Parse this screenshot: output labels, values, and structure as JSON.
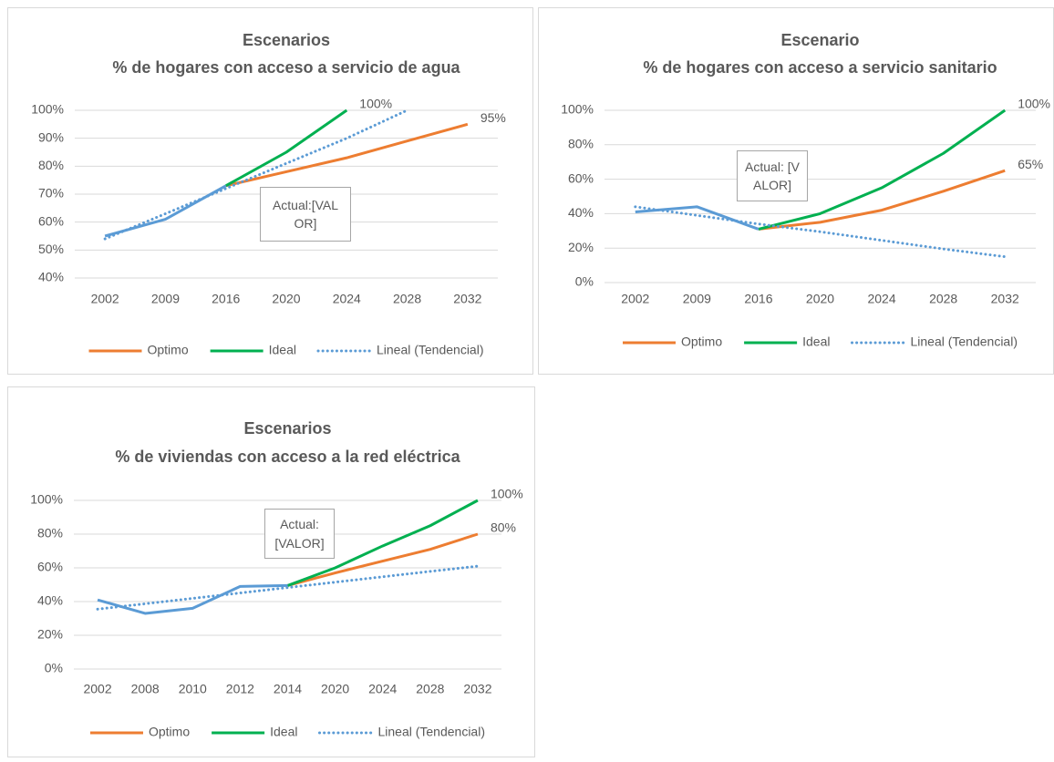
{
  "chart_data": [
    {
      "type": "line",
      "title": "Escenarios",
      "subtitle": "% de hogares con acceso a servicio de agua",
      "categories": [
        "2002",
        "2009",
        "2016",
        "2020",
        "2024",
        "2028",
        "2032"
      ],
      "series": [
        {
          "name": "Optimo",
          "color": "#ED7D31",
          "values": [
            null,
            null,
            73,
            78,
            83,
            89,
            95
          ],
          "value_labels": [
            null,
            null,
            null,
            null,
            null,
            null,
            "95%"
          ]
        },
        {
          "name": "Ideal",
          "color": "#00B050",
          "values": [
            null,
            null,
            73,
            85,
            100,
            null,
            null
          ],
          "value_labels": [
            null,
            null,
            null,
            null,
            "100%",
            null,
            null
          ]
        },
        {
          "name": "Lineal (Tendencial)",
          "color": "#5B9BD5",
          "dashed": true,
          "values": [
            54,
            63,
            72,
            81,
            90,
            100,
            null
          ]
        },
        {
          "color": "#5B9BD5",
          "values": [
            55,
            61,
            73,
            null,
            null,
            null,
            null
          ]
        }
      ],
      "ylim": [
        40,
        100
      ],
      "yticks": [
        {
          "value": 40,
          "label": "40%"
        },
        {
          "value": 50,
          "label": "50%"
        },
        {
          "value": 60,
          "label": "60%"
        },
        {
          "value": 70,
          "label": "70%"
        },
        {
          "value": 80,
          "label": "80%"
        },
        {
          "value": 90,
          "label": "90%"
        },
        {
          "value": 100,
          "label": "100%"
        }
      ],
      "grid": true,
      "legend": "bottom",
      "annotation": "Actual:[VALOR]"
    },
    {
      "type": "line",
      "title": "Escenario",
      "subtitle": "% de hogares con acceso a servicio sanitario",
      "categories": [
        "2002",
        "2009",
        "2016",
        "2020",
        "2024",
        "2028",
        "2032"
      ],
      "series": [
        {
          "name": "Optimo",
          "color": "#ED7D31",
          "values": [
            null,
            null,
            31,
            35,
            42,
            53,
            65
          ],
          "value_labels": [
            null,
            null,
            null,
            null,
            null,
            null,
            "65%"
          ]
        },
        {
          "name": "Ideal",
          "color": "#00B050",
          "values": [
            null,
            null,
            31,
            40,
            55,
            75,
            100
          ],
          "value_labels": [
            null,
            null,
            null,
            null,
            null,
            null,
            "100%"
          ]
        },
        {
          "name": "Lineal (Tendencial)",
          "color": "#5B9BD5",
          "dashed": true,
          "values": [
            44,
            39,
            34,
            29.5,
            24.5,
            19.5,
            15
          ]
        },
        {
          "color": "#5B9BD5",
          "values": [
            41,
            44,
            31,
            null,
            null,
            null,
            null
          ]
        }
      ],
      "ylim": [
        0,
        100
      ],
      "yticks": [
        {
          "value": 0,
          "label": "0%"
        },
        {
          "value": 20,
          "label": "20%"
        },
        {
          "value": 40,
          "label": "40%"
        },
        {
          "value": 60,
          "label": "60%"
        },
        {
          "value": 80,
          "label": "80%"
        },
        {
          "value": 100,
          "label": "100%"
        }
      ],
      "grid": true,
      "legend": "bottom",
      "annotation": "Actual: [VALOR]"
    },
    {
      "type": "line",
      "title": "Escenarios",
      "subtitle": "% de viviendas con acceso a la red eléctrica",
      "categories": [
        "2002",
        "2008",
        "2010",
        "2012",
        "2014",
        "2020",
        "2024",
        "2028",
        "2032"
      ],
      "series": [
        {
          "name": "Optimo",
          "color": "#ED7D31",
          "values": [
            null,
            null,
            null,
            null,
            49.5,
            57,
            64,
            71,
            80
          ],
          "value_labels": [
            null,
            null,
            null,
            null,
            null,
            null,
            null,
            null,
            "80%"
          ]
        },
        {
          "name": "Ideal",
          "color": "#00B050",
          "values": [
            null,
            null,
            null,
            null,
            49.5,
            60,
            73,
            85,
            100
          ],
          "value_labels": [
            null,
            null,
            null,
            null,
            null,
            null,
            null,
            null,
            "100%"
          ]
        },
        {
          "name": "Lineal (Tendencial)",
          "color": "#5B9BD5",
          "dashed": true,
          "values": [
            35.5,
            38.7,
            41.9,
            45.1,
            48.3,
            51.5,
            54.7,
            57.9,
            61
          ]
        },
        {
          "color": "#5B9BD5",
          "values": [
            41,
            33,
            36,
            49,
            49.5,
            null,
            null,
            null,
            null
          ]
        }
      ],
      "ylim": [
        0,
        100
      ],
      "yticks": [
        {
          "value": 0,
          "label": "0%"
        },
        {
          "value": 20,
          "label": "20%"
        },
        {
          "value": 40,
          "label": "40%"
        },
        {
          "value": 60,
          "label": "60%"
        },
        {
          "value": 80,
          "label": "80%"
        },
        {
          "value": 100,
          "label": "100%"
        }
      ],
      "grid": true,
      "legend": "bottom",
      "annotation": "Actual: [VALOR]"
    }
  ]
}
